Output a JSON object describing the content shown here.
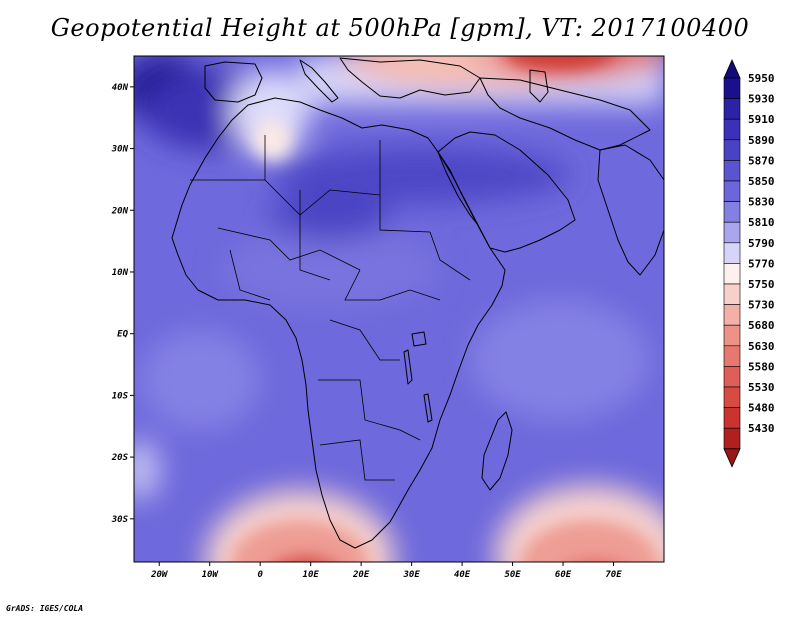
{
  "title": "Geopotential Height at 500hPa [gpm], VT: 2017100400",
  "credit": "GrADS: IGES/COLA",
  "map": {
    "lon_range": [
      -25,
      80
    ],
    "lat_range": [
      -37,
      45
    ],
    "lon_ticks": [
      "20W",
      "10W",
      "0",
      "10E",
      "20E",
      "30E",
      "40E",
      "50E",
      "60E",
      "70E"
    ],
    "lat_ticks": [
      "40N",
      "30N",
      "20N",
      "10N",
      "EQ",
      "10S",
      "20S",
      "30S"
    ],
    "variable": "geopotential height",
    "level_hpa": 500,
    "units": "gpm"
  },
  "colorbar": {
    "orientation": "vertical",
    "position": "right",
    "levels": [
      {
        "value": "5950",
        "color": "#1a0f8c"
      },
      {
        "value": "5930",
        "color": "#2b22a6"
      },
      {
        "value": "5910",
        "color": "#3a31b8"
      },
      {
        "value": "5890",
        "color": "#4a42c4"
      },
      {
        "value": "5870",
        "color": "#5a54cf"
      },
      {
        "value": "5850",
        "color": "#6b66d9"
      },
      {
        "value": "5830",
        "color": "#8480e2"
      },
      {
        "value": "5810",
        "color": "#a9a6ee"
      },
      {
        "value": "5790",
        "color": "#d6d4f8"
      },
      {
        "value": "5770",
        "color": "#fdf0ee"
      },
      {
        "value": "5750",
        "color": "#f8d0cb"
      },
      {
        "value": "5730",
        "color": "#f2b0a8"
      },
      {
        "value": "5680",
        "color": "#ec9289"
      },
      {
        "value": "5630",
        "color": "#e67870"
      },
      {
        "value": "5580",
        "color": "#df5f58"
      },
      {
        "value": "5530",
        "color": "#d84a44"
      },
      {
        "value": "5480",
        "color": "#c93430"
      },
      {
        "value": "5430",
        "color": "#b0201f"
      }
    ],
    "top_arrow_color": "#140a78",
    "bottom_arrow_color": "#9a1515"
  }
}
